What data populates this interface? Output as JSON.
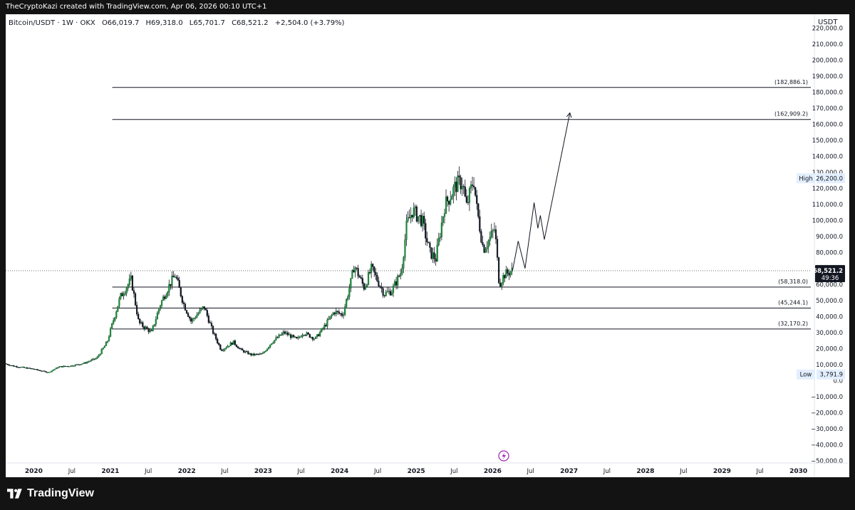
{
  "header": {
    "attribution": "TheCryptoKazi created with TradingView.com, Apr 06, 2026 00:10 UTC+1"
  },
  "symbol_info": {
    "title": "Bitcoin/USDT · 1W · OKX",
    "open": "O66,019.7",
    "high": "H69,318.0",
    "low": "L65,701.7",
    "close": "C68,521.2",
    "change": "+2,504.0 (+3.79%)"
  },
  "currency": "USDT",
  "footer": {
    "brand": "TradingView"
  },
  "chart_data": {
    "type": "candlestick",
    "y_axis": {
      "range": [
        -55000,
        225000
      ],
      "ticks": [
        220000,
        210000,
        200000,
        190000,
        180000,
        170000,
        160000,
        150000,
        140000,
        130000,
        120000,
        110000,
        100000,
        90000,
        80000,
        60000,
        50000,
        40000,
        30000,
        20000,
        10000,
        0,
        -10000,
        -20000,
        -30000,
        -40000,
        -50000
      ],
      "tick_labels": [
        "220,000.0",
        "210,000.0",
        "200,000.0",
        "190,000.0",
        "180,000.0",
        "170,000.0",
        "160,000.0",
        "150,000.0",
        "140,000.0",
        "130,000.0",
        "120,000.0",
        "110,000.0",
        "100,000.0",
        "90,000.0",
        "80,000.0",
        "60,000.0",
        "50,000.0",
        "40,000.0",
        "30,000.0",
        "20,000.0",
        "10,000.0",
        "0.0",
        "−10,000.0",
        "−20,000.0",
        "−30,000.0",
        "−40,000.0",
        "−50,000.0"
      ]
    },
    "x_axis": {
      "range": [
        "2019-08-20",
        "2030-03-01"
      ],
      "ticks": [
        {
          "date": "2020-01-01",
          "label": "2020"
        },
        {
          "date": "2020-07-01",
          "label": "Jul"
        },
        {
          "date": "2021-01-01",
          "label": "2021"
        },
        {
          "date": "2021-07-01",
          "label": "Jul"
        },
        {
          "date": "2022-01-01",
          "label": "2022"
        },
        {
          "date": "2022-07-01",
          "label": "Jul"
        },
        {
          "date": "2023-01-01",
          "label": "2023"
        },
        {
          "date": "2023-07-01",
          "label": "Jul"
        },
        {
          "date": "2024-01-01",
          "label": "2024"
        },
        {
          "date": "2024-07-01",
          "label": "Jul"
        },
        {
          "date": "2025-01-01",
          "label": "2025"
        },
        {
          "date": "2025-07-01",
          "label": "Jul"
        },
        {
          "date": "2026-01-01",
          "label": "2026"
        },
        {
          "date": "2026-07-01",
          "label": "Jul"
        },
        {
          "date": "2027-01-01",
          "label": "2027"
        },
        {
          "date": "2027-07-01",
          "label": "Jul"
        },
        {
          "date": "2028-01-01",
          "label": "2028"
        },
        {
          "date": "2028-07-01",
          "label": "Jul"
        },
        {
          "date": "2029-01-01",
          "label": "2029"
        },
        {
          "date": "2029-07-01",
          "label": "Jul"
        },
        {
          "date": "2030-01-01",
          "label": "2030"
        }
      ]
    },
    "price_path": [
      [
        "2019-08-20",
        10500
      ],
      [
        "2019-10-01",
        9000
      ],
      [
        "2019-11-20",
        8000
      ],
      [
        "2020-01-01",
        7200
      ],
      [
        "2020-03-15",
        5000
      ],
      [
        "2020-05-01",
        8500
      ],
      [
        "2020-07-01",
        9200
      ],
      [
        "2020-09-01",
        10800
      ],
      [
        "2020-11-01",
        14000
      ],
      [
        "2020-12-20",
        24000
      ],
      [
        "2021-01-15",
        36000
      ],
      [
        "2021-02-20",
        52000
      ],
      [
        "2021-04-14",
        63000
      ],
      [
        "2021-05-20",
        36000
      ],
      [
        "2021-07-20",
        30000
      ],
      [
        "2021-09-01",
        48000
      ],
      [
        "2021-10-15",
        60000
      ],
      [
        "2021-11-10",
        66000
      ],
      [
        "2021-12-20",
        48000
      ],
      [
        "2022-01-25",
        37000
      ],
      [
        "2022-03-28",
        46000
      ],
      [
        "2022-05-10",
        30000
      ],
      [
        "2022-06-18",
        19000
      ],
      [
        "2022-08-15",
        24000
      ],
      [
        "2022-09-20",
        19000
      ],
      [
        "2022-11-10",
        16000
      ],
      [
        "2023-01-01",
        16500
      ],
      [
        "2023-02-15",
        24000
      ],
      [
        "2023-04-14",
        30000
      ],
      [
        "2023-06-15",
        25500
      ],
      [
        "2023-07-15",
        30000
      ],
      [
        "2023-09-10",
        26000
      ],
      [
        "2023-10-25",
        34000
      ],
      [
        "2023-12-10",
        43000
      ],
      [
        "2024-01-20",
        41000
      ],
      [
        "2024-02-28",
        62000
      ],
      [
        "2024-03-14",
        72000
      ],
      [
        "2024-05-01",
        58000
      ],
      [
        "2024-06-05",
        70000
      ],
      [
        "2024-08-05",
        54000
      ],
      [
        "2024-09-10",
        56000
      ],
      [
        "2024-10-25",
        68000
      ],
      [
        "2024-11-20",
        97000
      ],
      [
        "2024-12-17",
        106000
      ],
      [
        "2025-02-01",
        100000
      ],
      [
        "2025-03-10",
        80000
      ],
      [
        "2025-04-08",
        76000
      ],
      [
        "2025-05-20",
        109000
      ],
      [
        "2025-07-14",
        122000
      ],
      [
        "2025-08-14",
        124000
      ],
      [
        "2025-09-01",
        108000
      ],
      [
        "2025-10-06",
        126000
      ],
      [
        "2025-10-20",
        108000
      ],
      [
        "2025-11-21",
        82000
      ],
      [
        "2025-12-20",
        88000
      ],
      [
        "2026-01-15",
        95000
      ],
      [
        "2026-02-05",
        60000
      ],
      [
        "2026-03-01",
        66000
      ],
      [
        "2026-04-06",
        68521
      ]
    ],
    "projection_path": [
      [
        "2026-04-06",
        68521
      ],
      [
        "2026-05-03",
        87000
      ],
      [
        "2026-06-05",
        70000
      ],
      [
        "2026-07-18",
        111000
      ],
      [
        "2026-08-05",
        95000
      ],
      [
        "2026-08-17",
        103000
      ],
      [
        "2026-09-05",
        88000
      ],
      [
        "2027-01-05",
        167000
      ]
    ],
    "horizontal_levels": [
      {
        "value": 182886.1,
        "label": "(182,886.1)",
        "start": "2021-01-10"
      },
      {
        "value": 162909.2,
        "label": "(162,909.2)",
        "start": "2021-01-10"
      },
      {
        "value": 58318.0,
        "label": "(58,318.0)",
        "start": "2021-01-10"
      },
      {
        "value": 45244.1,
        "label": "(45,244.1)",
        "start": "2021-01-10"
      },
      {
        "value": 32170.2,
        "label": "(32,170.2)",
        "start": "2021-01-10"
      }
    ],
    "high_marker": {
      "label": "High",
      "value": 126200.0,
      "value_label": "126,200.0"
    },
    "low_marker": {
      "label": "Low",
      "value": 3791.9,
      "value_label": "3,791.9"
    },
    "last_price": {
      "value": 68521.2,
      "label": "68,521.2",
      "countdown": "49:36"
    },
    "grid": false,
    "legend": "none"
  }
}
